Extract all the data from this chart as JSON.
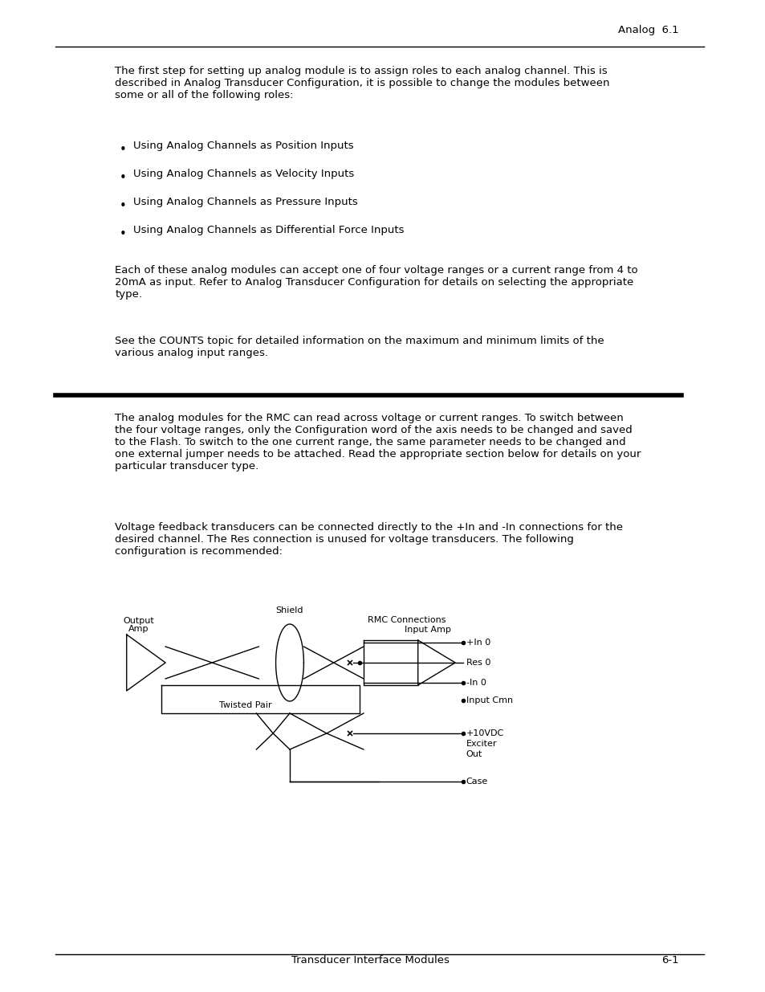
{
  "header_text": "Analog  6.1",
  "footer_left": "Transducer Interface Modules",
  "footer_right": "6-1",
  "para1": "The first step for setting up analog module is to assign roles to each analog channel. This is\ndescribed in Analog Transducer Configuration, it is possible to change the modules between\nsome or all of the following roles:",
  "bullets": [
    "Using Analog Channels as Position Inputs",
    "Using Analog Channels as Velocity Inputs",
    "Using Analog Channels as Pressure Inputs",
    "Using Analog Channels as Differential Force Inputs"
  ],
  "para2": "Each of these analog modules can accept one of four voltage ranges or a current range from 4 to\n20mA as input. Refer to Analog Transducer Configuration for details on selecting the appropriate\ntype.",
  "para3": "See the COUNTS topic for detailed information on the maximum and minimum limits of the\nvarious analog input ranges.",
  "para4": "The analog modules for the RMC can read across voltage or current ranges. To switch between\nthe four voltage ranges, only the Configuration word of the axis needs to be changed and saved\nto the Flash. To switch to the one current range, the same parameter needs to be changed and\none external jumper needs to be attached. Read the appropriate section below for details on your\nparticular transducer type.",
  "para5": "Voltage feedback transducers can be connected directly to the +In and -In connections for the\ndesired channel. The Res connection is unused for voltage transducers. The following\nconfiguration is recommended:",
  "text_color": "#000000",
  "bg_color": "#ffffff",
  "font_size_body": 9.5,
  "font_size_header": 9.5,
  "font_size_footer": 9.5,
  "font_size_diagram": 8.0
}
